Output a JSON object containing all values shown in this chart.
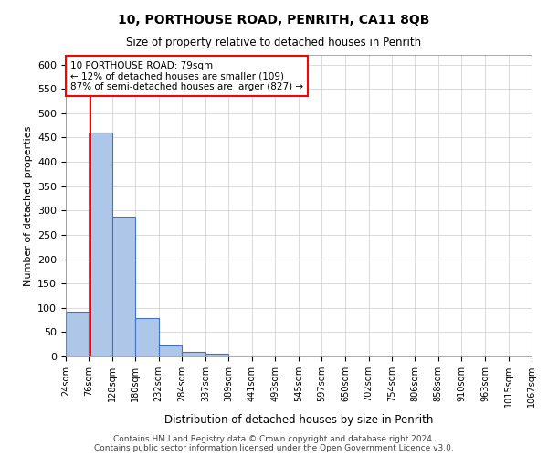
{
  "title": "10, PORTHOUSE ROAD, PENRITH, CA11 8QB",
  "subtitle": "Size of property relative to detached houses in Penrith",
  "xlabel": "Distribution of detached houses by size in Penrith",
  "ylabel": "Number of detached properties",
  "footer_line1": "Contains HM Land Registry data © Crown copyright and database right 2024.",
  "footer_line2": "Contains public sector information licensed under the Open Government Licence v3.0.",
  "bin_edges": [
    24,
    76,
    128,
    180,
    232,
    284,
    337,
    389,
    441,
    493,
    545,
    597,
    650,
    702,
    754,
    806,
    858,
    910,
    963,
    1015,
    1067
  ],
  "bar_heights": [
    93,
    460,
    287,
    78,
    22,
    10,
    5,
    2,
    1,
    1,
    0,
    0,
    0,
    0,
    0,
    0,
    0,
    0,
    0,
    0
  ],
  "bar_color": "#aec6e8",
  "bar_edge_color": "#4472c4",
  "red_line_x": 79,
  "annotation_text": "10 PORTHOUSE ROAD: 79sqm\n← 12% of detached houses are smaller (109)\n87% of semi-detached houses are larger (827) →",
  "annotation_box_color": "white",
  "annotation_box_edge_color": "red",
  "red_line_color": "red",
  "ylim": [
    0,
    620
  ],
  "yticks": [
    0,
    50,
    100,
    150,
    200,
    250,
    300,
    350,
    400,
    450,
    500,
    550,
    600
  ],
  "background_color": "white",
  "grid_color": "#cccccc"
}
